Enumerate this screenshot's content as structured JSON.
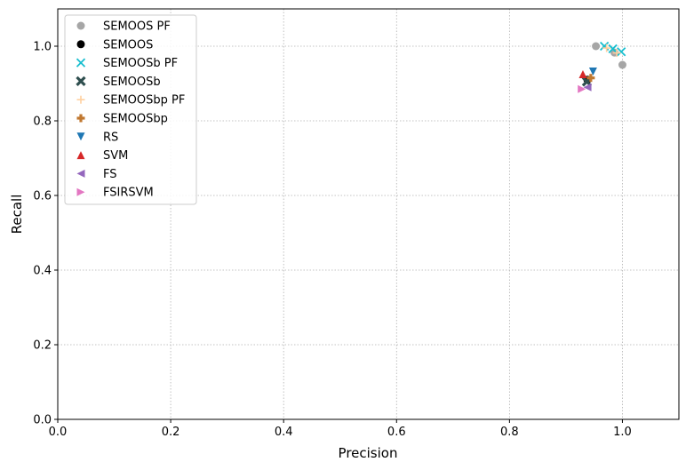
{
  "chart_data": {
    "type": "scatter",
    "xlabel": "Precision",
    "ylabel": "Recall",
    "xlim": [
      0,
      1.1
    ],
    "ylim": [
      0,
      1.1
    ],
    "xticks": [
      0.0,
      0.2,
      0.4,
      0.6,
      0.8,
      1.0
    ],
    "yticks": [
      0.0,
      0.2,
      0.4,
      0.6,
      0.8,
      1.0
    ],
    "xtick_labels": [
      "0.0",
      "0.2",
      "0.4",
      "0.6",
      "0.8",
      "1.0"
    ],
    "ytick_labels": [
      "0.0",
      "0.2",
      "0.4",
      "0.6",
      "0.8",
      "1.0"
    ],
    "grid": true,
    "legend_position": "top-left",
    "series": [
      {
        "name": "SEMOOS PF",
        "marker": "circle",
        "color": "#a6a6a6",
        "points": [
          [
            0.953,
            1.0
          ],
          [
            0.986,
            0.983
          ],
          [
            1.0,
            0.95
          ]
        ]
      },
      {
        "name": "SEMOOS",
        "marker": "circle",
        "color": "#000000",
        "points": [
          [
            0.938,
            0.91
          ]
        ]
      },
      {
        "name": "SEMOOSb PF",
        "marker": "x",
        "color": "#17becf",
        "points": [
          [
            0.968,
            1.0
          ],
          [
            0.983,
            0.993
          ],
          [
            0.998,
            0.985
          ]
        ]
      },
      {
        "name": "SEMOOSb",
        "marker": "X",
        "color": "#2f4f4f",
        "points": [
          [
            0.937,
            0.905
          ]
        ]
      },
      {
        "name": "SEMOOSbp PF",
        "marker": "plus",
        "color": "#ffd0a0",
        "points": [
          [
            0.972,
            0.995
          ],
          [
            0.99,
            0.982
          ]
        ]
      },
      {
        "name": "SEMOOSbp",
        "marker": "P",
        "color": "#c07830",
        "points": [
          [
            0.944,
            0.915
          ]
        ]
      },
      {
        "name": "RS",
        "marker": "triangle-down",
        "color": "#1f77b4",
        "points": [
          [
            0.948,
            0.932
          ]
        ]
      },
      {
        "name": "SVM",
        "marker": "triangle-up",
        "color": "#d62728",
        "points": [
          [
            0.93,
            0.925
          ]
        ]
      },
      {
        "name": "FS",
        "marker": "triangle-left",
        "color": "#9467bd",
        "points": [
          [
            0.938,
            0.89
          ]
        ]
      },
      {
        "name": "FSIRSVM",
        "marker": "triangle-right",
        "color": "#e377c2",
        "points": [
          [
            0.928,
            0.885
          ]
        ]
      }
    ]
  }
}
